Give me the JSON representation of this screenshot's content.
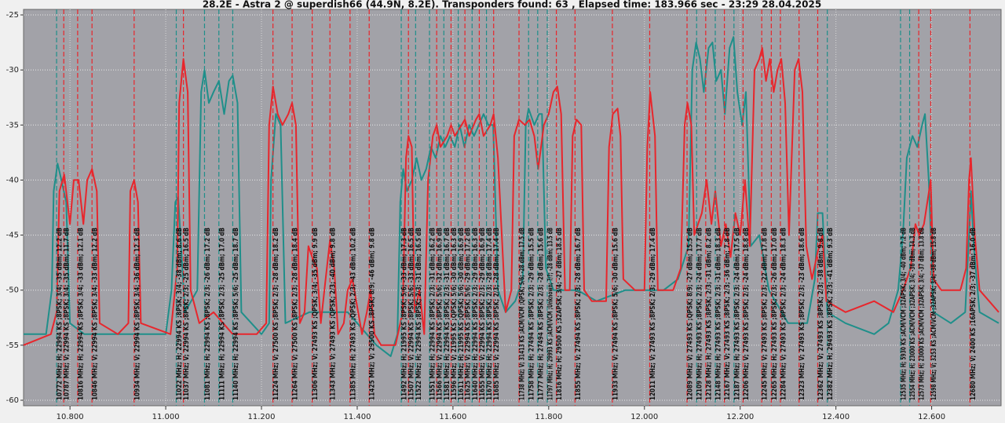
{
  "chart_data": {
    "type": "line",
    "title": "28.2E - Astra 2 @ superdish66 (44.9N, 8.2E). Transponders found: 63 , Elapsed time: 183.966 sec - 23:29 28.04.2025",
    "xlim": [
      10703,
      12745
    ],
    "ylim": [
      -60.5,
      -24.5
    ],
    "xticks": [
      {
        "value": 10800,
        "label": "10.800"
      },
      {
        "value": 11000,
        "label": "11.000"
      },
      {
        "value": 11200,
        "label": "11.200"
      },
      {
        "value": 11400,
        "label": "11.400"
      },
      {
        "value": 11600,
        "label": "11.600"
      },
      {
        "value": 11800,
        "label": "11.800"
      },
      {
        "value": 12000,
        "label": "12.000"
      },
      {
        "value": 12200,
        "label": "12.200"
      },
      {
        "value": 12400,
        "label": "12.400"
      },
      {
        "value": 12600,
        "label": "12.600"
      }
    ],
    "yticks": [
      -25,
      -30,
      -35,
      -40,
      -45,
      -50,
      -55,
      -60
    ],
    "grid": true,
    "series": [
      {
        "color": "#1f8f8a",
        "x": [
          10703,
          10750,
          10762,
          10766,
          10774,
          10782,
          10792,
          10800,
          10830,
          10900,
          10950,
          11000,
          11012,
          11020,
          11026,
          11032,
          11040,
          11066,
          11074,
          11081,
          11090,
          11100,
          11111,
          11122,
          11132,
          11140,
          11150,
          11158,
          11200,
          11216,
          11220,
          11230,
          11240,
          11250,
          11300,
          11380,
          11440,
          11470,
          11484,
          11490,
          11496,
          11504,
          11514,
          11524,
          11534,
          11544,
          11554,
          11564,
          11574,
          11584,
          11594,
          11604,
          11614,
          11624,
          11634,
          11644,
          11654,
          11664,
          11674,
          11684,
          11694,
          11710,
          11730,
          11746,
          11752,
          11758,
          11770,
          11780,
          11786,
          11794,
          11810,
          11860,
          11900,
          11960,
          12040,
          12070,
          12092,
          12100,
          12108,
          12116,
          12124,
          12134,
          12142,
          12150,
          12160,
          12168,
          12178,
          12186,
          12194,
          12204,
          12212,
          12222,
          12240,
          12260,
          12300,
          12340,
          12356,
          12362,
          12372,
          12382,
          12420,
          12480,
          12510,
          12530,
          12540,
          12548,
          12560,
          12570,
          12580,
          12586,
          12594,
          12604,
          12640,
          12670,
          12678,
          12682,
          12688,
          12700,
          12740
        ],
        "values": [
          -54,
          -54,
          -50,
          -41,
          -38.5,
          -40,
          -42,
          -53,
          -54,
          -54,
          -54,
          -54,
          -50,
          -42,
          -41.5,
          -46,
          -52,
          -50,
          -32,
          -30,
          -33,
          -32,
          -31,
          -34,
          -31,
          -30.5,
          -33,
          -52,
          -54,
          -53,
          -40,
          -34,
          -35,
          -53,
          -52,
          -52,
          -55,
          -56,
          -54,
          -42,
          -39,
          -41,
          -40,
          -38,
          -40,
          -39,
          -37,
          -38,
          -36,
          -37,
          -36,
          -37,
          -35,
          -37,
          -35,
          -36,
          -35,
          -34,
          -35,
          -35,
          -50,
          -52,
          -51,
          -49,
          -35,
          -33.5,
          -35,
          -34,
          -34,
          -48,
          -50,
          -50,
          -51,
          -50,
          -50,
          -49,
          -46,
          -30,
          -27.5,
          -29,
          -32,
          -28,
          -27.5,
          -31,
          -30,
          -34,
          -28,
          -27,
          -32,
          -35,
          -32,
          -46,
          -45,
          -50,
          -53,
          -53,
          -49,
          -43,
          -43,
          -52,
          -53,
          -54,
          -53,
          -50,
          -45,
          -38,
          -36,
          -37,
          -35,
          -34,
          -40,
          -52,
          -53,
          -52,
          -45,
          -41,
          -46,
          -52,
          -53
        ]
      },
      {
        "color": "#e8262c",
        "x": [
          10703,
          10760,
          10772,
          10778,
          10788,
          10800,
          10808,
          10818,
          10828,
          10836,
          10846,
          10856,
          10862,
          10900,
          10922,
          10926,
          10934,
          10942,
          10948,
          11010,
          11024,
          11028,
          11037,
          11046,
          11052,
          11070,
          11100,
          11140,
          11190,
          11210,
          11216,
          11224,
          11234,
          11244,
          11256,
          11264,
          11272,
          11280,
          11290,
          11298,
          11306,
          11316,
          11324,
          11334,
          11343,
          11352,
          11360,
          11372,
          11380,
          11390,
          11398,
          11410,
          11420,
          11428,
          11436,
          11450,
          11480,
          11495,
          11502,
          11507,
          11514,
          11520,
          11530,
          11540,
          11548,
          11558,
          11566,
          11574,
          11588,
          11596,
          11604,
          11618,
          11625,
          11634,
          11648,
          11655,
          11664,
          11678,
          11685,
          11694,
          11710,
          11722,
          11728,
          11738,
          11750,
          11760,
          11770,
          11778,
          11790,
          11800,
          11810,
          11818,
          11826,
          11834,
          11844,
          11850,
          11858,
          11868,
          11874,
          11890,
          11920,
          11926,
          11934,
          11944,
          11950,
          11956,
          11980,
          12000,
          12006,
          12012,
          12022,
          12028,
          12060,
          12076,
          12084,
          12090,
          12098,
          12104,
          12120,
          12130,
          12140,
          12148,
          12160,
          12170,
          12180,
          12190,
          12200,
          12210,
          12220,
          12230,
          12240,
          12246,
          12254,
          12262,
          12270,
          12278,
          12286,
          12294,
          12302,
          12314,
          12322,
          12330,
          12338,
          12350,
          12362,
          12372,
          12380,
          12420,
          12480,
          12520,
          12540,
          12556,
          12566,
          12574,
          12584,
          12598,
          12604,
          12620,
          12660,
          12672,
          12678,
          12682,
          12690,
          12700,
          12720,
          12740
        ],
        "values": [
          -55,
          -54,
          -52,
          -41,
          -39.5,
          -44,
          -40,
          -40,
          -44,
          -40,
          -39,
          -41,
          -53,
          -54,
          -53,
          -41,
          -40,
          -42,
          -53,
          -54,
          -48,
          -33,
          -29,
          -32,
          -50,
          -53,
          -52,
          -54,
          -54,
          -53,
          -35,
          -31.5,
          -34,
          -35,
          -34,
          -33,
          -35,
          -53,
          -52,
          -46,
          -47,
          -48,
          -53,
          -49,
          -45.5,
          -48,
          -54,
          -53,
          -50,
          -49,
          -51,
          -54,
          -52,
          -50,
          -54,
          -55,
          -55,
          -52,
          -38,
          -36,
          -37,
          -52,
          -50,
          -54,
          -40,
          -36,
          -35,
          -37,
          -36,
          -35,
          -36,
          -35,
          -34.5,
          -36,
          -34.5,
          -34,
          -36,
          -35,
          -34,
          -38,
          -52,
          -50,
          -36,
          -34.5,
          -35,
          -34.5,
          -36,
          -39,
          -35,
          -34,
          -32,
          -31.5,
          -34,
          -50,
          -50,
          -36,
          -34.5,
          -35,
          -50,
          -51,
          -51,
          -37,
          -34,
          -33.5,
          -36,
          -49,
          -50,
          -50,
          -37,
          -32,
          -36,
          -50,
          -50,
          -48,
          -35,
          -33,
          -35,
          -45,
          -43,
          -40,
          -44,
          -41,
          -46,
          -44,
          -47,
          -43,
          -45,
          -40,
          -46,
          -30,
          -29,
          -28,
          -31,
          -29,
          -32,
          -30,
          -29,
          -33,
          -45,
          -30,
          -29,
          -32,
          -46,
          -49,
          -46.5,
          -45,
          -51,
          -52,
          -51,
          -52,
          -50,
          -48,
          -44,
          -45,
          -44,
          -40,
          -49,
          -50,
          -50,
          -48,
          -40,
          -38,
          -45,
          -50,
          -51,
          -52
        ]
      }
    ],
    "transponders": [
      {
        "mhz": 10772,
        "color": "#1f8f8a",
        "label": "10772 MHz; H; 22994 KS ;8PSK; 3/4; -35 dBm; 12.2 dB"
      },
      {
        "mhz": 10787,
        "color": "#e8262c",
        "label": "10787 MHz; V; 22994 KS ;8PSK; 3/4; -35 dBm; 11.7 dB"
      },
      {
        "mhz": 10816,
        "color": "#e8262c",
        "label": "10816 MHz; H; 22994 KS ;8PSK; 3/4; -33 dBm; 12.1 dB"
      },
      {
        "mhz": 10846,
        "color": "#e8262c",
        "label": "10846 MHz; V; 22994 KS ;8PSK; 3/4; -33 dBm; 12.2 dB"
      },
      {
        "mhz": 10934,
        "color": "#e8262c",
        "label": "10934 MHz; V; 22994 KS ;8PSK; 3/4; -36 dBm; 12.3 dB"
      },
      {
        "mhz": 11022,
        "color": "#1f8f8a",
        "label": "11022 MHz; H; 22994 KS ;8PSK; 3/4; -38 dBm; 8.6 dB"
      },
      {
        "mhz": 11037,
        "color": "#e8262c",
        "label": "11037 MHz; V; 22994 KS ;8PSK; 2/3; -25 dBm; 16.5 dB"
      },
      {
        "mhz": 11081,
        "color": "#1f8f8a",
        "label": "11081 MHz; H; 22994 KS ;8PSK; 2/3; -26 dBm; 17.2 dB"
      },
      {
        "mhz": 11111,
        "color": "#1f8f8a",
        "label": "11111 MHz; H; 22994 KS ;8PSK; 2/3; -25 dBm; 17.0 dB"
      },
      {
        "mhz": 11140,
        "color": "#1f8f8a",
        "label": "11140 MHz; H; 22994 KS ;8PSK; 5/6; -25 dBm; 18.7 dB"
      },
      {
        "mhz": 11224,
        "color": "#e8262c",
        "label": "11224 MHz; V; 27500 KS ;8PSK; 2/3; -28 dBm; 18.2 dB"
      },
      {
        "mhz": 11264,
        "color": "#e8262c",
        "label": "11264 MHz; V; 27500 KS ;8PSK; 2/3; -28 dBm; 18.4 dB"
      },
      {
        "mhz": 11306,
        "color": "#e8262c",
        "label": "11306 MHz; V; 27493 KS ;QPSK; 3/4; -35 dBm; 9.9 dB"
      },
      {
        "mhz": 11343,
        "color": "#e8262c",
        "label": "11343 MHz; V; 27493 KS ;QPSK; 2/3; -40 dBm; 9.8 dB"
      },
      {
        "mhz": 11385,
        "color": "#e8262c",
        "label": "11385 MHz; H; 27493 KS ;QPSK; 2/3; -43 dBm; 10.2 dB"
      },
      {
        "mhz": 11425,
        "color": "#e8262c",
        "label": "11425 MHz; V; 29500 KS ;8PSK; 8/9; -46 dBm; 9.8 dB"
      },
      {
        "mhz": 11492,
        "color": "#1f8f8a",
        "label": "11492 MHz; H; 21995 KS ;8PSK; 5/6; -33 dBm; 17.3 dB"
      },
      {
        "mhz": 11507,
        "color": "#e8262c",
        "label": "11507 MHz; V; 22994 KS ;8PSK; 5/6; -33 dBm; 16.5 dB"
      },
      {
        "mhz": 11522,
        "color": "#1f8f8a",
        "label": "11522 MHz; H; 22994 KS ;8PSK; 2/3; -31 dBm; 16.5 dB"
      },
      {
        "mhz": 11551,
        "color": "#1f8f8a",
        "label": "11551 MHz; H; 22994 KS ;8PSK; 2/3; -31 dBm; 16.2 dB"
      },
      {
        "mhz": 11566,
        "color": "#e8262c",
        "label": "11566 MHz; V; 22994 KS ;8PSK; 5/6; -32 dBm; 16.9 dB"
      },
      {
        "mhz": 11581,
        "color": "#1f8f8a",
        "label": "11581 MHz; H; 22994 KS ;8PSK; 2/3; -31 dBm; 16.7 dB"
      },
      {
        "mhz": 11596,
        "color": "#e8262c",
        "label": "11596 MHz; V; 21995 KS ;QPSK; 5/6; -30 dBm; 16.3 dB"
      },
      {
        "mhz": 11611,
        "color": "#1f8f8a",
        "label": "11611 MHz; H; 21995 KS ;QPSK; 5/6; -30 dBm; 16.9 dB"
      },
      {
        "mhz": 11625,
        "color": "#e8262c",
        "label": "11625 MHz; V; 22994 KS ;8PSK; 5/6; -29 dBm; 17.2 dB"
      },
      {
        "mhz": 11640,
        "color": "#1f8f8a",
        "label": "11640 MHz; H; 22994 KS ;8PSK; 2/3; -29 dBm; 16.3 dB"
      },
      {
        "mhz": 11655,
        "color": "#e8262c",
        "label": "11655 MHz; V; 22994 KS ;8PSK; 2/3; -29 dBm; 16.9 dB"
      },
      {
        "mhz": 11670,
        "color": "#1f8f8a",
        "label": "11670 MHz; H; 22994 KS ;8PSK; 2/3; -28 dBm; 17.4 dB"
      },
      {
        "mhz": 11685,
        "color": "#e8262c",
        "label": "11685 MHz; V; 22994 KS ;8PSK; 2/3; -28 dBm; 17.4 dB"
      },
      {
        "mhz": 11738,
        "color": "#e8262c",
        "label": "11738 MHz; V; 31413 KS ;ACM/VCM ;QPSK; 5/6; -28 dBm; 17.5 dB"
      },
      {
        "mhz": 11758,
        "color": "#1f8f8a",
        "label": "11758 MHz; H; 27494 KS ;8PSK; 2/3; -29 dBm; 15.5 dB"
      },
      {
        "mhz": 11777,
        "color": "#1f8f8a",
        "label": "11777 MHz; H; 27494 KS ;8PSK; 2/3; -28 dBm; 15.6 dB"
      },
      {
        "mhz": 11797,
        "color": "#1f8f8a",
        "label": "11797 MHz; H; 29993 KS ;ACM/VCM ;Unknown; ?/?; -28 dBm; 13.5 dB"
      },
      {
        "mhz": 11816,
        "color": "#e8262c",
        "label": "11816 MHz; H; 29500 KS ;32APSK; 3/4; -27 dBm; 18.5 dB"
      },
      {
        "mhz": 11855,
        "color": "#e8262c",
        "label": "11855 MHz; V; 27494 KS ;8PSK; 2/3; -28 dBm; 16.7 dB"
      },
      {
        "mhz": 11933,
        "color": "#e8262c",
        "label": "11933 MHz; V; 27494 KS ;8PSK; 5/6; -30 dBm; 15.6 dB"
      },
      {
        "mhz": 12011,
        "color": "#e8262c",
        "label": "12011 MHz; V; 27493 KS ;8PSK; 2/3; -29 dBm; 17.4 dB"
      },
      {
        "mhz": 12089,
        "color": "#e8262c",
        "label": "12089 MHz; V; 27493 KS ;QPSK; 8/9; -27 dBm; 15.5 dB"
      },
      {
        "mhz": 12109,
        "color": "#1f8f8a",
        "label": "12109 MHz; H; 27493 KS ;8PSK; 2/3; -24 dBm; 17.7 dB"
      },
      {
        "mhz": 12128,
        "color": "#e8262c",
        "label": "12128 MHz; H; 27493 KS ;8PSK; 2/3; -31 dBm; 8.2 dB"
      },
      {
        "mhz": 12148,
        "color": "#1f8f8a",
        "label": "12148 MHz; H; 27493 KS ;8PSK; 2/3; -31 dBm; 18.3 dB"
      },
      {
        "mhz": 12167,
        "color": "#e8262c",
        "label": "12167 MHz; V; 27493 KS ;8PSK; 2/3; -36 dBm; 7.8 dB"
      },
      {
        "mhz": 12187,
        "color": "#1f8f8a",
        "label": "12187 MHz; H; 27493 KS ;8PSK; 2/3; -24 dBm; 17.5 dB"
      },
      {
        "mhz": 12206,
        "color": "#e8262c",
        "label": "12206 MHz; V; 27493 KS ;8PSK; 2/3; -24 dBm; 18.8 dB"
      },
      {
        "mhz": 12245,
        "color": "#e8262c",
        "label": "12245 MHz; V; 27493 KS ;8PSK; 2/3; -22 dBm; 17.8 dB"
      },
      {
        "mhz": 12265,
        "color": "#e8262c",
        "label": "12265 MHz; H; 27493 KS ;8PSK; 2/3; -26 dBm; 17.0 dB"
      },
      {
        "mhz": 12284,
        "color": "#e8262c",
        "label": "12284 MHz; V; 27493 KS ;8PSK; 2/3; -24 dBm; 18.3 dB"
      },
      {
        "mhz": 12323,
        "color": "#e8262c",
        "label": "12323 MHz; V; 27493 KS ;8PSK; 2/3; -23 dBm; 18.6 dB"
      },
      {
        "mhz": 12362,
        "color": "#e8262c",
        "label": "12362 MHz; V; 27493 KS ;8PSK; 2/3; -38 dBm; 9.8 dB"
      },
      {
        "mhz": 12382,
        "color": "#1f8f8a",
        "label": "12382 MHz; H; 29493 KS ;8PSK; 2/3; -41 dBm; 9.3 dB"
      },
      {
        "mhz": 12535,
        "color": "#1f8f8a",
        "label": "12535 MHz; H; 5930 KS ;ACM/VCM ;32APSK; 3/4; -40 dBm; 7.2 dB"
      },
      {
        "mhz": 12554,
        "color": "#1f8f8a",
        "label": "12554 MHz; H; 23000 KS ;ACM/VCM ;32APSK; 3/4; -36 dBm; 14.3 dB"
      },
      {
        "mhz": 12573,
        "color": "#e8262c",
        "label": "12573 MHz; H; 23000 KS ;ACM/VCM ;32APSK; 3/4; -37 dBm; 13.8 dB"
      },
      {
        "mhz": 12598,
        "color": "#e8262c",
        "label": "12598 MHz; V; 3253 KS ;ACM/VCM ;32APSK; 3/4; -38 dBm; 15.8 dB"
      },
      {
        "mhz": 12680,
        "color": "#e8262c",
        "label": "12680 MHz; V; 2400 KS ;16APSK; 2/3; -37 dBm; 16.0 dB"
      }
    ]
  }
}
